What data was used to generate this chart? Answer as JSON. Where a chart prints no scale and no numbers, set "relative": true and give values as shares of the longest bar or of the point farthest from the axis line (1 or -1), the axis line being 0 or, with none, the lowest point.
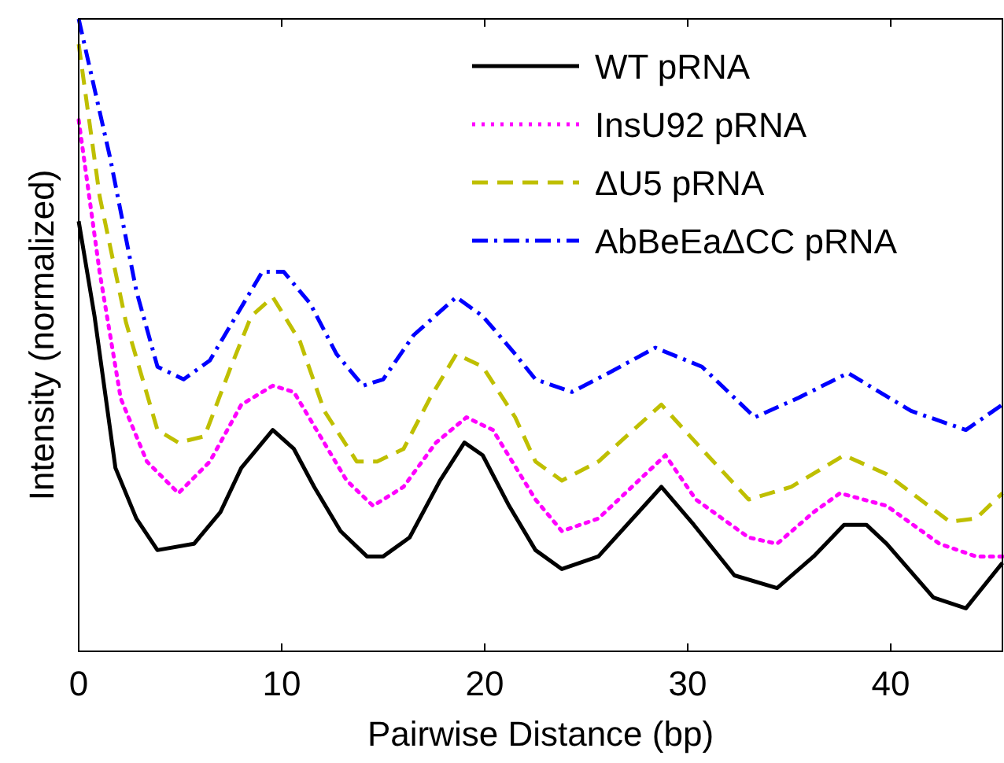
{
  "chart_data": {
    "type": "line",
    "relative": true,
    "xlabel": "Pairwise Distance (bp)",
    "ylabel": "Intensity (normalized)",
    "xlim": [
      0,
      45.5
    ],
    "xticks": [
      0,
      10,
      20,
      30,
      40
    ],
    "legend": "top right",
    "grid": false,
    "series": [
      {
        "name": "WT pRNA",
        "color": "#000000",
        "line_style": "solid",
        "x": [
          0,
          0.78,
          1.81,
          2.84,
          3.88,
          5.68,
          6.98,
          8.01,
          9.56,
          10.6,
          11.6,
          12.9,
          14.2,
          15.0,
          16.3,
          17.8,
          19.0,
          19.9,
          21.2,
          22.5,
          23.8,
          25.6,
          28.7,
          30.3,
          32.3,
          34.4,
          36.2,
          37.7,
          38.8,
          39.8,
          42.1,
          43.7,
          45.5
        ],
        "values": [
          0.68,
          0.53,
          0.29,
          0.21,
          0.16,
          0.17,
          0.22,
          0.29,
          0.35,
          0.32,
          0.26,
          0.19,
          0.15,
          0.15,
          0.18,
          0.27,
          0.33,
          0.31,
          0.23,
          0.16,
          0.13,
          0.15,
          0.26,
          0.2,
          0.12,
          0.1,
          0.15,
          0.2,
          0.2,
          0.17,
          0.085,
          0.068,
          0.14
        ]
      },
      {
        "name": "InsU92 pRNA",
        "color": "#ff00ff",
        "line_style": "dotted",
        "x": [
          0,
          1.03,
          2.07,
          3.36,
          4.91,
          6.46,
          8.01,
          9.56,
          10.6,
          11.9,
          13.2,
          14.5,
          16.0,
          17.6,
          19.1,
          20.4,
          22.5,
          23.8,
          25.6,
          28.9,
          30.4,
          33.0,
          34.4,
          36.2,
          37.5,
          39.8,
          42.4,
          44.2,
          45.5
        ],
        "values": [
          0.84,
          0.6,
          0.4,
          0.3,
          0.25,
          0.3,
          0.39,
          0.42,
          0.41,
          0.34,
          0.27,
          0.23,
          0.26,
          0.33,
          0.37,
          0.35,
          0.24,
          0.19,
          0.21,
          0.31,
          0.24,
          0.18,
          0.17,
          0.22,
          0.25,
          0.23,
          0.17,
          0.15,
          0.15
        ]
      },
      {
        "name": "ΔU5 pRNA",
        "color": "#bfbf00",
        "line_style": "dashed",
        "x": [
          0,
          1.03,
          2.33,
          3.88,
          4.91,
          6.2,
          7.5,
          8.5,
          9.56,
          10.9,
          12.1,
          13.7,
          14.7,
          16.0,
          17.3,
          18.6,
          19.9,
          21.5,
          22.5,
          23.8,
          25.6,
          28.7,
          30.4,
          33.0,
          35.1,
          37.7,
          39.8,
          42.9,
          44.2,
          45.5
        ],
        "values": [
          0.96,
          0.72,
          0.52,
          0.35,
          0.33,
          0.34,
          0.45,
          0.53,
          0.56,
          0.49,
          0.38,
          0.3,
          0.3,
          0.32,
          0.4,
          0.47,
          0.45,
          0.37,
          0.3,
          0.27,
          0.3,
          0.39,
          0.33,
          0.24,
          0.26,
          0.31,
          0.28,
          0.205,
          0.21,
          0.25
        ]
      },
      {
        "name": "AbBeEaΔCC pRNA",
        "color": "#0000ff",
        "line_style": "dashdot",
        "x": [
          0,
          1.55,
          2.84,
          3.88,
          5.17,
          6.46,
          7.75,
          9.04,
          10.1,
          11.4,
          12.7,
          14.0,
          15.0,
          16.5,
          18.6,
          19.9,
          21.5,
          22.5,
          24.3,
          26.1,
          28.4,
          30.7,
          33.3,
          35.4,
          37.9,
          41.0,
          43.7,
          45.5
        ],
        "values": [
          1,
          0.78,
          0.57,
          0.45,
          0.43,
          0.46,
          0.53,
          0.6,
          0.6,
          0.55,
          0.47,
          0.42,
          0.43,
          0.5,
          0.56,
          0.53,
          0.47,
          0.43,
          0.41,
          0.44,
          0.48,
          0.45,
          0.37,
          0.4,
          0.44,
          0.38,
          0.35,
          0.39
        ]
      }
    ]
  }
}
